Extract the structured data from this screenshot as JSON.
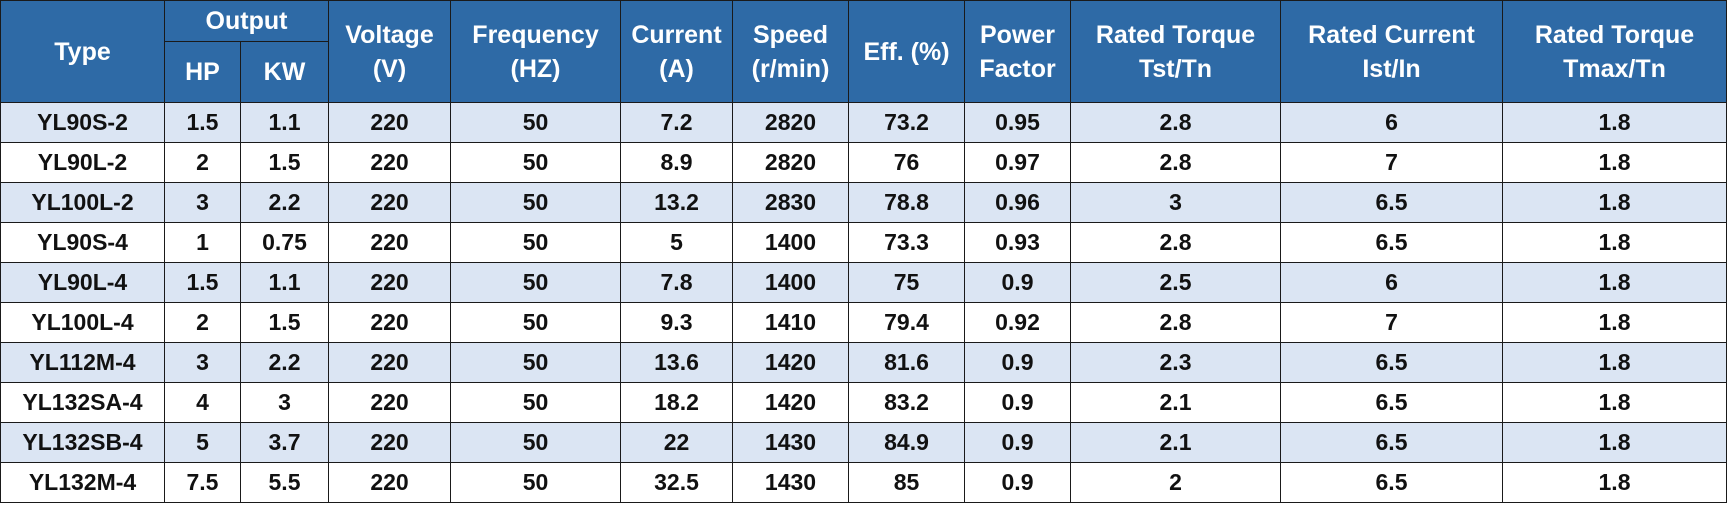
{
  "table": {
    "headers": {
      "type": "Type",
      "output": "Output",
      "hp": "HP",
      "kw": "KW",
      "voltage": [
        "Voltage",
        "(V)"
      ],
      "frequency": [
        "Frequency",
        "(HZ)"
      ],
      "current": [
        "Current",
        "(A)"
      ],
      "speed": [
        "Speed",
        "(r/min)"
      ],
      "eff": "Eff. (%)",
      "power_factor": [
        "Power",
        "Factor"
      ],
      "rated_torque_tst": [
        "Rated Torque",
        "Tst/Tn"
      ],
      "rated_current": [
        "Rated Current",
        "Ist/In"
      ],
      "rated_torque_tmax": [
        "Rated Torque",
        "Tmax/Tn"
      ]
    },
    "rows": [
      [
        "YL90S-2",
        "1.5",
        "1.1",
        "220",
        "50",
        "7.2",
        "2820",
        "73.2",
        "0.95",
        "2.8",
        "6",
        "1.8"
      ],
      [
        "YL90L-2",
        "2",
        "1.5",
        "220",
        "50",
        "8.9",
        "2820",
        "76",
        "0.97",
        "2.8",
        "7",
        "1.8"
      ],
      [
        "YL100L-2",
        "3",
        "2.2",
        "220",
        "50",
        "13.2",
        "2830",
        "78.8",
        "0.96",
        "3",
        "6.5",
        "1.8"
      ],
      [
        "YL90S-4",
        "1",
        "0.75",
        "220",
        "50",
        "5",
        "1400",
        "73.3",
        "0.93",
        "2.8",
        "6.5",
        "1.8"
      ],
      [
        "YL90L-4",
        "1.5",
        "1.1",
        "220",
        "50",
        "7.8",
        "1400",
        "75",
        "0.9",
        "2.5",
        "6",
        "1.8"
      ],
      [
        "YL100L-4",
        "2",
        "1.5",
        "220",
        "50",
        "9.3",
        "1410",
        "79.4",
        "0.92",
        "2.8",
        "7",
        "1.8"
      ],
      [
        "YL112M-4",
        "3",
        "2.2",
        "220",
        "50",
        "13.6",
        "1420",
        "81.6",
        "0.9",
        "2.3",
        "6.5",
        "1.8"
      ],
      [
        "YL132SA-4",
        "4",
        "3",
        "220",
        "50",
        "18.2",
        "1420",
        "83.2",
        "0.9",
        "2.1",
        "6.5",
        "1.8"
      ],
      [
        "YL132SB-4",
        "5",
        "3.7",
        "220",
        "50",
        "22",
        "1430",
        "84.9",
        "0.9",
        "2.1",
        "6.5",
        "1.8"
      ],
      [
        "YL132M-4",
        "7.5",
        "5.5",
        "220",
        "50",
        "32.5",
        "1430",
        "85",
        "0.9",
        "2",
        "6.5",
        "1.8"
      ]
    ]
  },
  "colors": {
    "header_bg": "#2e6aa6",
    "header_text": "#ffffff",
    "band_row_bg": "#dbe5f3",
    "plain_row_bg": "#ffffff",
    "border": "#1a1a1a"
  }
}
